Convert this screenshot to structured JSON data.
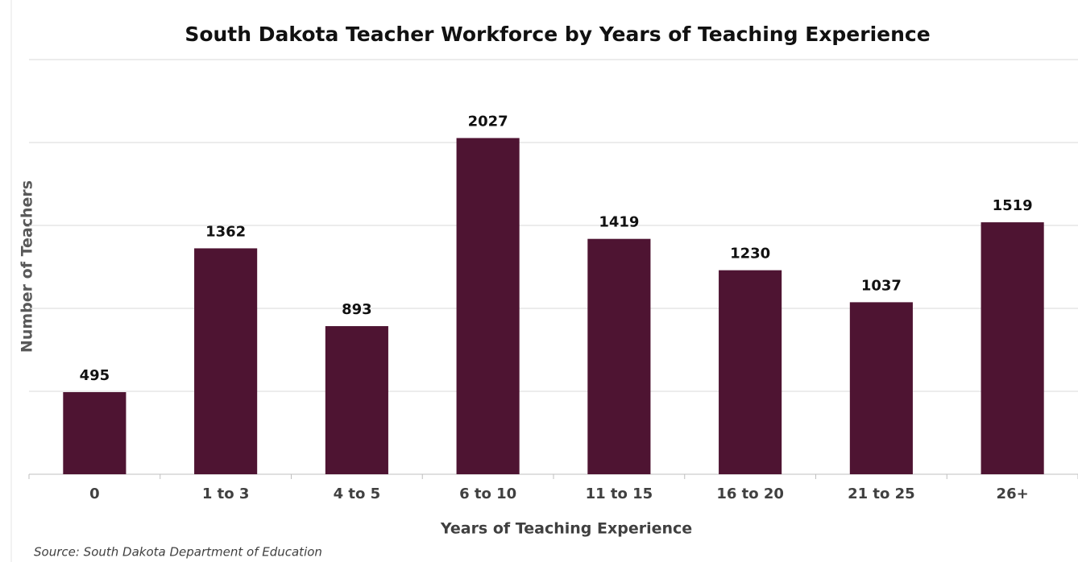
{
  "chart_data": {
    "type": "bar",
    "title": "South Dakota Teacher Workforce by Years of Teaching Experience",
    "x_label": "Years of Teaching Experience",
    "y_label": "Number of Teachers",
    "source": "Source:  South Dakota Department of Education",
    "categories": [
      "0",
      "1 to 3",
      "4 to 5",
      "6 to 10",
      "11 to 15",
      "16 to 20",
      "21 to 25",
      "26+"
    ],
    "values": [
      495,
      1362,
      893,
      2027,
      1419,
      1230,
      1037,
      1519
    ],
    "color": "#4e1432",
    "ylim": [
      0,
      2500
    ],
    "yticks": [
      0,
      500,
      1000,
      1500,
      2000,
      2500
    ],
    "grid": true
  }
}
